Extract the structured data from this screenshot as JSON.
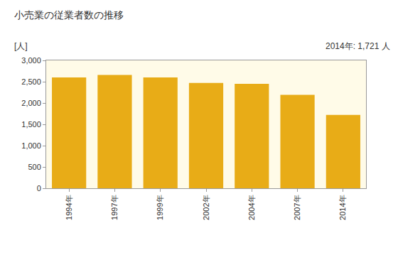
{
  "chart_data": {
    "type": "bar",
    "title": "小売業の従業者数の推移",
    "ylabel": "[人]",
    "annotations": [
      "2014年: 1,721 人"
    ],
    "categories": [
      "1994年",
      "1997年",
      "1999年",
      "2002年",
      "2004年",
      "2007年",
      "2014年"
    ],
    "values": [
      2600,
      2660,
      2600,
      2470,
      2450,
      2190,
      1721
    ],
    "color": "#e8ac17",
    "ylim": [
      0,
      3000
    ],
    "yticks": [
      0,
      500,
      {
        "value": 1000,
        "label": "1,000"
      },
      {
        "value": 1500,
        "label": "1,500"
      },
      {
        "value": 2000,
        "label": "2,000"
      },
      {
        "value": 2500,
        "label": "2,500"
      },
      {
        "value": 3000,
        "label": "3,000"
      }
    ],
    "grid": false
  }
}
